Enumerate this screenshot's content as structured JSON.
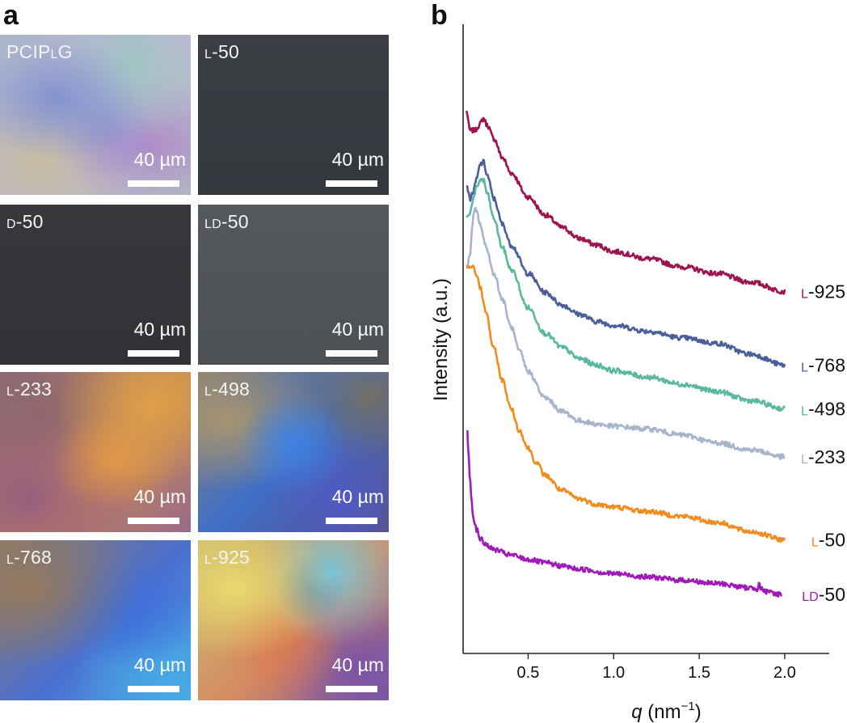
{
  "panel_a": {
    "letter": "a",
    "tiles": [
      {
        "prefix": "",
        "sc": "",
        "rest": "PCIP",
        "sc2": "L",
        "rest2": "G",
        "scale": "40 µm",
        "look": "iridescent-light"
      },
      {
        "prefix": "",
        "sc": "L",
        "rest": "-50",
        "sc2": "",
        "rest2": "",
        "scale": "40 µm",
        "look": "dark-gray"
      },
      {
        "prefix": "",
        "sc": "D",
        "rest": "-50",
        "sc2": "",
        "rest2": "",
        "scale": "40 µm",
        "look": "dark-charcoal"
      },
      {
        "prefix": "",
        "sc": "LD",
        "rest": "-50",
        "sc2": "",
        "rest2": "",
        "scale": "40 µm",
        "look": "medium-gray"
      },
      {
        "prefix": "",
        "sc": "L",
        "rest": "-233",
        "sc2": "",
        "rest2": "",
        "scale": "40 µm",
        "look": "orange-purple"
      },
      {
        "prefix": "",
        "sc": "L",
        "rest": "-498",
        "sc2": "",
        "rest2": "",
        "scale": "40 µm",
        "look": "blue-brown"
      },
      {
        "prefix": "",
        "sc": "L",
        "rest": "-768",
        "sc2": "",
        "rest2": "",
        "scale": "40 µm",
        "look": "brown-blue"
      },
      {
        "prefix": "",
        "sc": "L",
        "rest": "-925",
        "sc2": "",
        "rest2": "",
        "scale": "40 µm",
        "look": "yellow-cyan-purple"
      }
    ]
  },
  "chart_data": {
    "type": "line",
    "panel_letter": "b",
    "title": "",
    "xlabel_italic": "q",
    "xlabel_rest": " (nm",
    "xlabel_sup": "−1",
    "xlabel_close": ")",
    "ylabel": "Intensity (a.u.)",
    "xlim": [
      0.12,
      2.26
    ],
    "ylim": [
      0,
      1
    ],
    "xticks": [
      0.5,
      1.0,
      1.5,
      2.0
    ],
    "xtick_labels": [
      "0.5",
      "1.0",
      "1.5",
      "2.0"
    ],
    "y_ticks_shown": false,
    "series": [
      {
        "name": "L-925",
        "label_sc": "L",
        "label_rest": "-925",
        "color": "#9c1450",
        "q": [
          0.14,
          0.16,
          0.19,
          0.21,
          0.24,
          0.26,
          0.3,
          0.35,
          0.4,
          0.5,
          0.6,
          0.7,
          0.8,
          0.9,
          1.0,
          1.2,
          1.4,
          1.6,
          1.8,
          2.0
        ],
        "intensity": [
          0.885,
          0.85,
          0.85,
          0.858,
          0.872,
          0.86,
          0.835,
          0.8,
          0.772,
          0.728,
          0.695,
          0.672,
          0.652,
          0.64,
          0.628,
          0.615,
          0.6,
          0.588,
          0.572,
          0.555
        ]
      },
      {
        "name": "L-768",
        "label_sc": "L",
        "label_rest": "-768",
        "color": "#4a5e99",
        "q": [
          0.14,
          0.16,
          0.18,
          0.2,
          0.22,
          0.24,
          0.26,
          0.3,
          0.35,
          0.4,
          0.5,
          0.6,
          0.7,
          0.8,
          0.9,
          1.0,
          1.2,
          1.4,
          1.6,
          1.8,
          2.0
        ],
        "intensity": [
          0.752,
          0.725,
          0.738,
          0.762,
          0.788,
          0.792,
          0.768,
          0.725,
          0.678,
          0.64,
          0.588,
          0.553,
          0.53,
          0.513,
          0.5,
          0.493,
          0.482,
          0.47,
          0.46,
          0.44,
          0.42
        ]
      },
      {
        "name": "L-498",
        "label_sc": "L",
        "label_rest": "-498",
        "color": "#5ab8a0",
        "q": [
          0.14,
          0.16,
          0.18,
          0.2,
          0.22,
          0.24,
          0.26,
          0.3,
          0.35,
          0.4,
          0.5,
          0.6,
          0.7,
          0.8,
          0.9,
          1.0,
          1.2,
          1.4,
          1.6,
          1.8,
          2.0
        ],
        "intensity": [
          0.69,
          0.7,
          0.725,
          0.745,
          0.76,
          0.758,
          0.735,
          0.688,
          0.635,
          0.595,
          0.525,
          0.478,
          0.452,
          0.432,
          0.42,
          0.41,
          0.398,
          0.385,
          0.372,
          0.355,
          0.34
        ]
      },
      {
        "name": "L-233",
        "label_sc": "L",
        "label_rest": "-233",
        "color": "#a8b3cc",
        "q": [
          0.14,
          0.16,
          0.17,
          0.18,
          0.19,
          0.2,
          0.22,
          0.25,
          0.3,
          0.35,
          0.4,
          0.45,
          0.5,
          0.6,
          0.7,
          0.8,
          0.9,
          1.0,
          1.2,
          1.4,
          1.6,
          1.8,
          2.0
        ],
        "intensity": [
          0.6,
          0.618,
          0.662,
          0.692,
          0.705,
          0.7,
          0.678,
          0.64,
          0.588,
          0.54,
          0.49,
          0.445,
          0.408,
          0.36,
          0.335,
          0.318,
          0.312,
          0.308,
          0.303,
          0.292,
          0.278,
          0.265,
          0.252
        ]
      },
      {
        "name": "L-50",
        "label_sc": "L",
        "label_rest": "-50",
        "color": "#f08c1e",
        "q": [
          0.14,
          0.16,
          0.18,
          0.2,
          0.22,
          0.25,
          0.3,
          0.35,
          0.4,
          0.45,
          0.5,
          0.55,
          0.6,
          0.7,
          0.8,
          0.9,
          1.0,
          1.2,
          1.4,
          1.6,
          1.8,
          2.0
        ],
        "intensity": [
          0.6,
          0.6,
          0.598,
          0.585,
          0.562,
          0.52,
          0.45,
          0.392,
          0.34,
          0.3,
          0.268,
          0.24,
          0.218,
          0.19,
          0.175,
          0.165,
          0.16,
          0.152,
          0.143,
          0.132,
          0.115,
          0.1
        ]
      },
      {
        "name": "LD-50",
        "label_sc": "LD",
        "label_rest": "-50",
        "color": "#a01aba",
        "q": [
          0.145,
          0.15,
          0.16,
          0.17,
          0.18,
          0.2,
          0.22,
          0.25,
          0.3,
          0.4,
          0.5,
          0.6,
          0.7,
          0.8,
          1.0,
          1.2,
          1.4,
          1.6,
          1.8,
          1.84,
          1.85,
          1.86,
          1.9,
          1.98
        ],
        "intensity": [
          0.3,
          0.268,
          0.215,
          0.17,
          0.14,
          0.118,
          0.102,
          0.092,
          0.082,
          0.072,
          0.064,
          0.058,
          0.052,
          0.046,
          0.038,
          0.032,
          0.026,
          0.02,
          0.012,
          0.01,
          0.024,
          0.01,
          0.004,
          0.0
        ]
      }
    ]
  }
}
